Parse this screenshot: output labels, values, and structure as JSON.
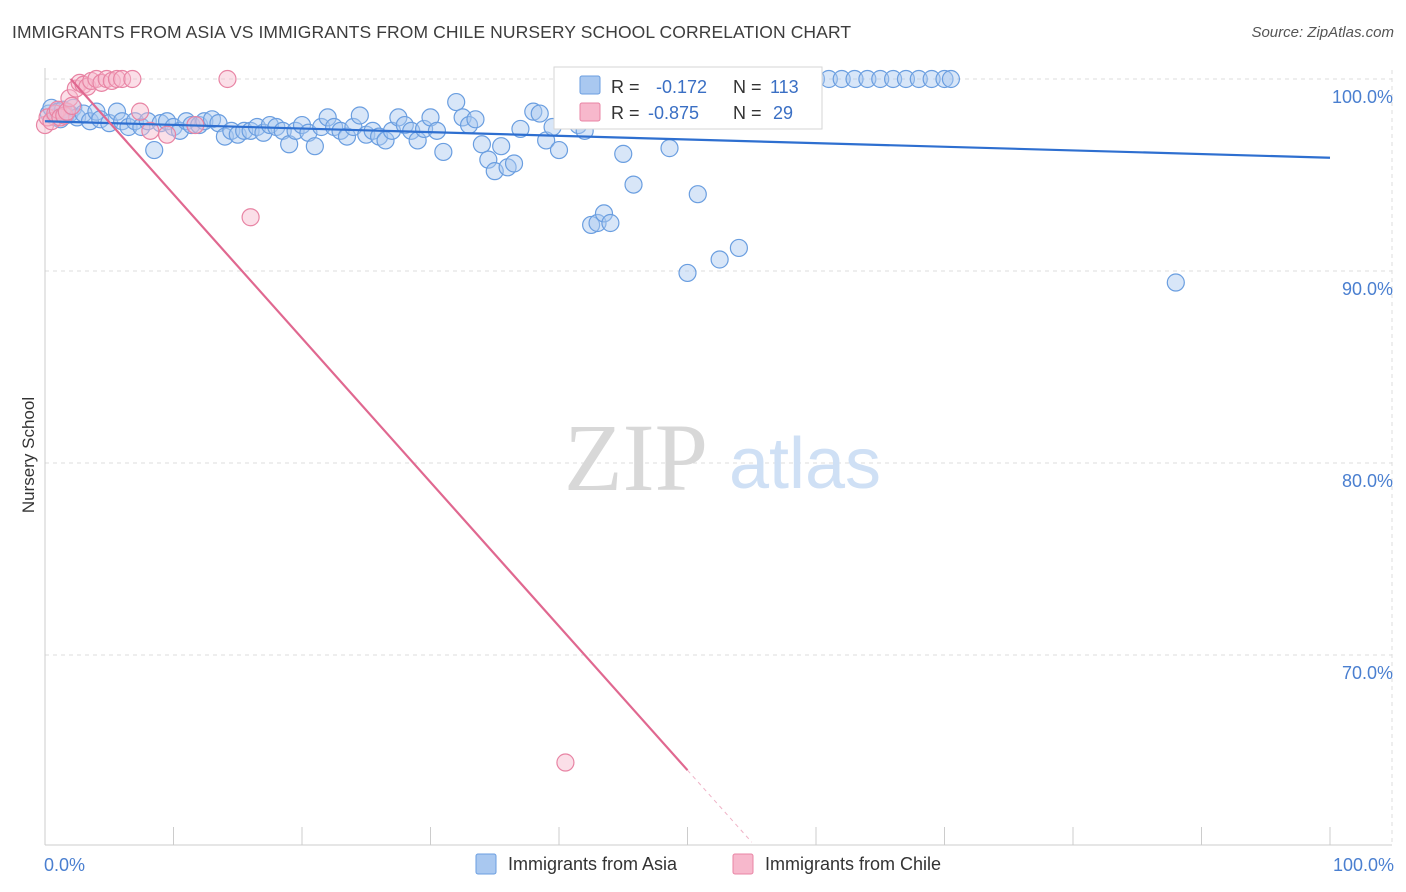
{
  "title": "IMMIGRANTS FROM ASIA VS IMMIGRANTS FROM CHILE NURSERY SCHOOL CORRELATION CHART",
  "source": "Source: ZipAtlas.com",
  "watermark": {
    "zip": "ZIP",
    "atlas": "atlas"
  },
  "colors": {
    "asia_fill": "#a9c8f0",
    "asia_stroke": "#6a9ee0",
    "asia_line": "#2e6fd0",
    "chile_fill": "#f7b8cc",
    "chile_stroke": "#e884a4",
    "chile_line": "#e06890",
    "grid": "#dcdcdc",
    "tick_label": "#4a7fd0"
  },
  "stats": [
    {
      "r_label": "R =",
      "r_value": "-0.172",
      "n_label": "N =",
      "n_value": "113"
    },
    {
      "r_label": "R =",
      "r_value": "-0.875",
      "n_label": "N =",
      "n_value": "29"
    }
  ],
  "legend": [
    "Immigrants from Asia",
    "Immigrants from Chile"
  ],
  "chart_data": {
    "type": "scatter",
    "xlabel": "",
    "ylabel": "Nursery School",
    "xlim": [
      0,
      100
    ],
    "ylim": [
      61,
      101
    ],
    "x_tick_labels": [
      "0.0%",
      "100.0%"
    ],
    "y_ticks": [
      100,
      90,
      80,
      70
    ],
    "y_tick_labels": [
      "100.0%",
      "90.0%",
      "80.0%",
      "70.0%"
    ],
    "grid": true,
    "legend_position": "bottom-center",
    "series": [
      {
        "name": "Immigrants from Asia",
        "trend": {
          "x": [
            0,
            100
          ],
          "y": [
            97.8,
            95.9
          ]
        },
        "points": [
          [
            0.3,
            98.2
          ],
          [
            0.5,
            98.5
          ],
          [
            0.8,
            98.0
          ],
          [
            1.0,
            98.3
          ],
          [
            1.2,
            97.9
          ],
          [
            1.4,
            98.4
          ],
          [
            1.6,
            98.1
          ],
          [
            1.9,
            98.2
          ],
          [
            2.2,
            98.5
          ],
          [
            2.5,
            98.0
          ],
          [
            3.0,
            98.2
          ],
          [
            3.5,
            97.8
          ],
          [
            4.0,
            98.3
          ],
          [
            4.3,
            97.9
          ],
          [
            5.0,
            97.7
          ],
          [
            5.6,
            98.3
          ],
          [
            6.0,
            97.8
          ],
          [
            6.5,
            97.5
          ],
          [
            7.0,
            97.8
          ],
          [
            7.5,
            97.5
          ],
          [
            8.0,
            97.8
          ],
          [
            8.5,
            96.3
          ],
          [
            9.0,
            97.7
          ],
          [
            9.5,
            97.8
          ],
          [
            10.0,
            97.5
          ],
          [
            10.5,
            97.3
          ],
          [
            11.0,
            97.8
          ],
          [
            11.4,
            97.6
          ],
          [
            12.0,
            97.6
          ],
          [
            12.4,
            97.8
          ],
          [
            13.0,
            97.9
          ],
          [
            13.5,
            97.7
          ],
          [
            14.0,
            97.0
          ],
          [
            14.5,
            97.3
          ],
          [
            15.0,
            97.1
          ],
          [
            15.5,
            97.3
          ],
          [
            16.0,
            97.3
          ],
          [
            16.5,
            97.5
          ],
          [
            17.0,
            97.2
          ],
          [
            17.5,
            97.6
          ],
          [
            18.0,
            97.5
          ],
          [
            18.5,
            97.3
          ],
          [
            19.0,
            96.6
          ],
          [
            19.5,
            97.3
          ],
          [
            20.0,
            97.6
          ],
          [
            20.5,
            97.2
          ],
          [
            21.0,
            96.5
          ],
          [
            21.5,
            97.5
          ],
          [
            22.0,
            98.0
          ],
          [
            22.5,
            97.5
          ],
          [
            23.0,
            97.3
          ],
          [
            23.5,
            97.0
          ],
          [
            24.0,
            97.5
          ],
          [
            24.5,
            98.1
          ],
          [
            25.0,
            97.1
          ],
          [
            25.5,
            97.3
          ],
          [
            26.0,
            97.0
          ],
          [
            26.5,
            96.8
          ],
          [
            27.0,
            97.3
          ],
          [
            27.5,
            98.0
          ],
          [
            28.0,
            97.6
          ],
          [
            28.5,
            97.3
          ],
          [
            29.0,
            96.8
          ],
          [
            29.5,
            97.4
          ],
          [
            30.0,
            98.0
          ],
          [
            30.5,
            97.3
          ],
          [
            31.0,
            96.2
          ],
          [
            32.0,
            98.8
          ],
          [
            32.5,
            98.0
          ],
          [
            33.0,
            97.6
          ],
          [
            33.5,
            97.9
          ],
          [
            34.0,
            96.6
          ],
          [
            34.5,
            95.8
          ],
          [
            35.0,
            95.2
          ],
          [
            35.5,
            96.5
          ],
          [
            36.0,
            95.4
          ],
          [
            36.5,
            95.6
          ],
          [
            37.0,
            97.4
          ],
          [
            38.0,
            98.3
          ],
          [
            38.5,
            98.2
          ],
          [
            39.0,
            96.8
          ],
          [
            39.5,
            97.5
          ],
          [
            40.0,
            96.3
          ],
          [
            41.5,
            97.6
          ],
          [
            42.0,
            97.3
          ],
          [
            42.5,
            92.4
          ],
          [
            43.0,
            92.5
          ],
          [
            43.5,
            93.0
          ],
          [
            44.0,
            92.5
          ],
          [
            45.0,
            96.1
          ],
          [
            45.8,
            94.5
          ],
          [
            47.0,
            99.8
          ],
          [
            48.0,
            100.0
          ],
          [
            48.6,
            96.4
          ],
          [
            50.0,
            89.9
          ],
          [
            50.8,
            94.0
          ],
          [
            52.5,
            90.6
          ],
          [
            54.0,
            91.2
          ],
          [
            55.0,
            100.0
          ],
          [
            58.0,
            99.5
          ],
          [
            60.0,
            100.0
          ],
          [
            61.0,
            100.0
          ],
          [
            62.0,
            100.0
          ],
          [
            63.0,
            100.0
          ],
          [
            64.0,
            100.0
          ],
          [
            65.0,
            100.0
          ],
          [
            66.0,
            100.0
          ],
          [
            67.0,
            100.0
          ],
          [
            68.0,
            100.0
          ],
          [
            69.0,
            100.0
          ],
          [
            70.0,
            100.0
          ],
          [
            70.5,
            100.0
          ],
          [
            88.0,
            89.4
          ]
        ]
      },
      {
        "name": "Immigrants from Chile",
        "trend": {
          "x": [
            2.0,
            50.0
          ],
          "y": [
            100.0,
            64.0
          ]
        },
        "trend_dashed": {
          "x": [
            50.0,
            55.0
          ],
          "y": [
            64.0,
            60.25
          ]
        },
        "points": [
          [
            0.0,
            97.6
          ],
          [
            0.2,
            98.0
          ],
          [
            0.5,
            97.8
          ],
          [
            0.8,
            98.2
          ],
          [
            1.0,
            98.4
          ],
          [
            1.2,
            98.0
          ],
          [
            1.5,
            98.1
          ],
          [
            1.7,
            98.3
          ],
          [
            1.9,
            99.0
          ],
          [
            2.1,
            98.6
          ],
          [
            2.4,
            99.5
          ],
          [
            2.7,
            99.8
          ],
          [
            3.0,
            99.7
          ],
          [
            3.3,
            99.6
          ],
          [
            3.6,
            99.9
          ],
          [
            4.0,
            100.0
          ],
          [
            4.4,
            99.8
          ],
          [
            4.8,
            100.0
          ],
          [
            5.2,
            99.9
          ],
          [
            5.6,
            100.0
          ],
          [
            6.0,
            100.0
          ],
          [
            6.8,
            100.0
          ],
          [
            7.4,
            98.3
          ],
          [
            8.2,
            97.3
          ],
          [
            9.5,
            97.1
          ],
          [
            11.7,
            97.6
          ],
          [
            14.2,
            100.0
          ],
          [
            16.0,
            92.8
          ],
          [
            40.5,
            64.4
          ]
        ]
      }
    ]
  }
}
